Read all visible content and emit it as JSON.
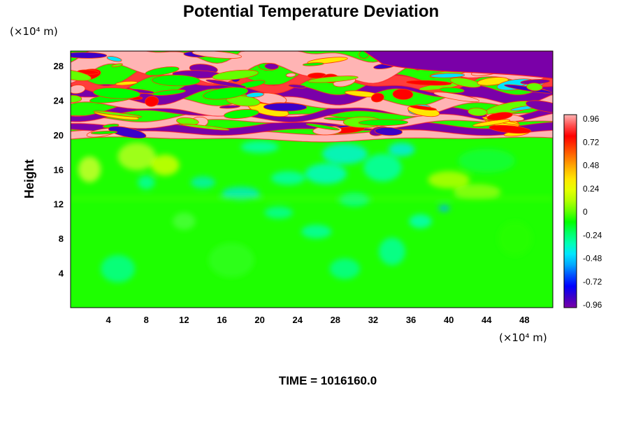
{
  "chart_data": {
    "type": "heatmap",
    "title": "Potential Temperature Deviation",
    "ylabel": "Height",
    "x_unit": "(×10⁴ m)",
    "y_unit": "(×10⁴ m)",
    "x_ticks": [
      4,
      8,
      12,
      16,
      20,
      24,
      28,
      32,
      36,
      40,
      44,
      48
    ],
    "y_ticks": [
      4,
      8,
      12,
      16,
      20,
      24,
      28
    ],
    "xlim": [
      0,
      51
    ],
    "ylim": [
      0,
      29.7
    ],
    "colorbar": {
      "ticks": [
        "0.96",
        "0.72",
        "0.48",
        "0.24",
        "0",
        "-0.24",
        "-0.48",
        "-0.72",
        "-0.96"
      ],
      "range": [
        -0.96,
        0.96
      ],
      "colors": [
        "#7a00a8",
        "#3c00c8",
        "#0000ff",
        "#0050ff",
        "#00a8ff",
        "#00e6ff",
        "#00ffb4",
        "#00ff64",
        "#00ff00",
        "#64ff00",
        "#b4ff00",
        "#e6ff00",
        "#ffe600",
        "#ffb400",
        "#ff7800",
        "#ff3c00",
        "#ff0000",
        "#ff5050",
        "#ffb4b4"
      ]
    },
    "footer": "TIME = 1016160.0"
  }
}
